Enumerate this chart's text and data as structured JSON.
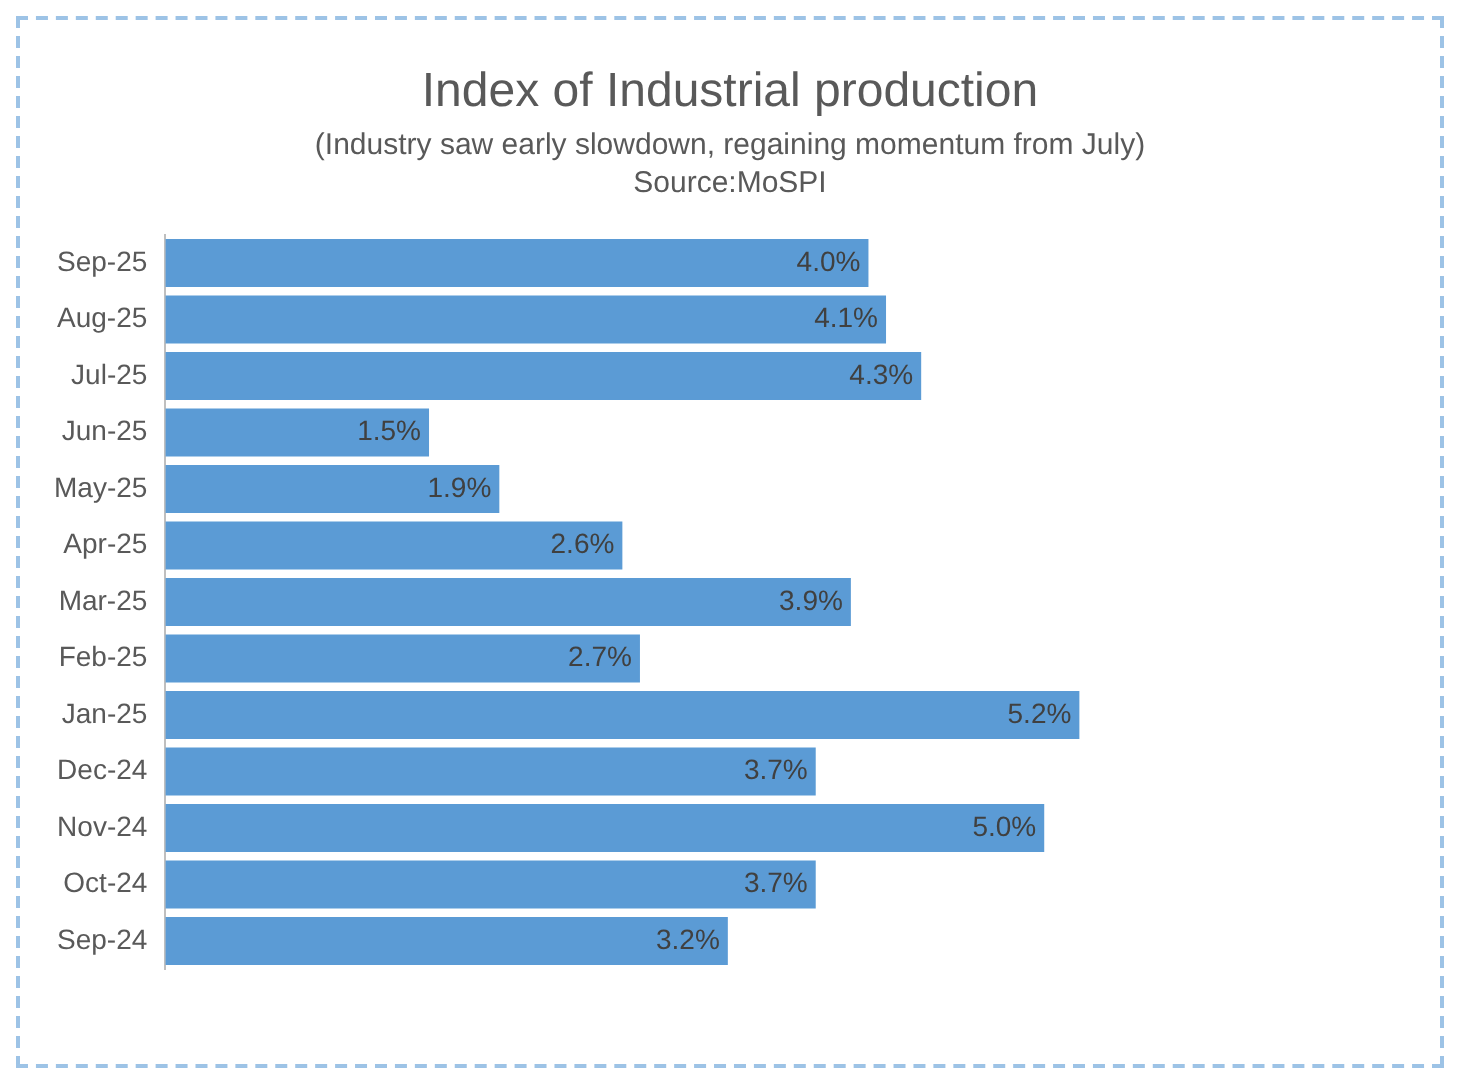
{
  "chart_data": {
    "type": "bar",
    "orientation": "horizontal",
    "title": "Index of Industrial production",
    "subtitle": "(Industry saw early slowdown, regaining momentum from July)",
    "annotations": [
      "Source:MoSPI"
    ],
    "categories": [
      "Sep-25",
      "Aug-25",
      "Jul-25",
      "Jun-25",
      "May-25",
      "Apr-25",
      "Mar-25",
      "Feb-25",
      "Jan-25",
      "Dec-24",
      "Nov-24",
      "Oct-24",
      "Sep-24"
    ],
    "values": [
      4.0,
      4.1,
      4.3,
      1.5,
      1.9,
      2.6,
      3.9,
      2.7,
      5.2,
      3.7,
      5.0,
      3.7,
      3.2
    ],
    "value_labels": [
      "4.0%",
      "4.1%",
      "4.3%",
      "1.5%",
      "1.9%",
      "2.6%",
      "3.9%",
      "2.7%",
      "5.2%",
      "3.7%",
      "5.0%",
      "3.7%",
      "3.2%"
    ],
    "color": "#5b9bd5",
    "legend": false
  }
}
